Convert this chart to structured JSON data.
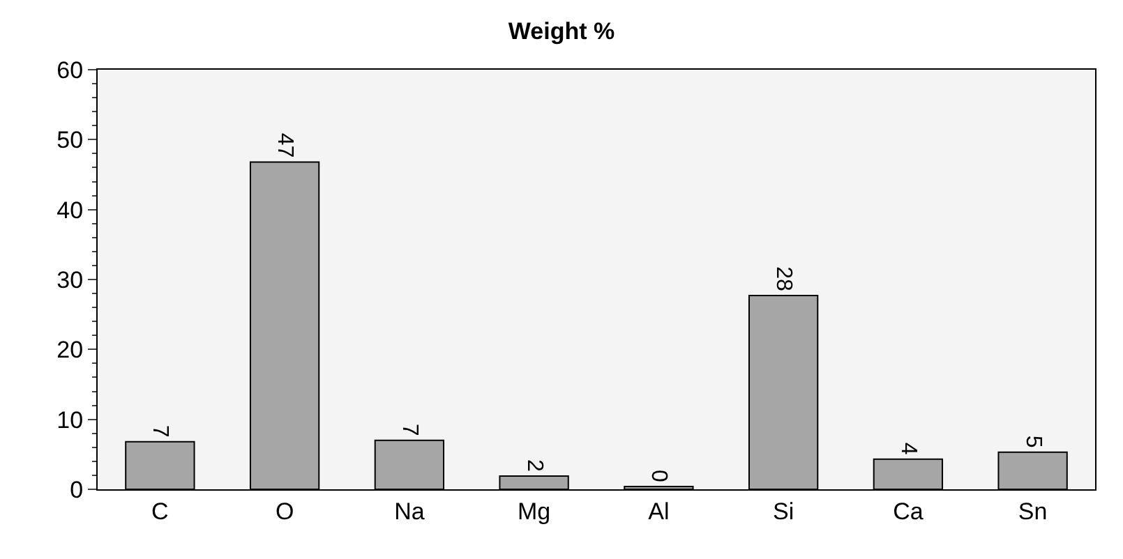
{
  "chart_data": {
    "type": "bar",
    "title": "Weight %",
    "categories": [
      "C",
      "O",
      "Na",
      "Mg",
      "Al",
      "Si",
      "Ca",
      "Sn"
    ],
    "values": [
      6.8,
      46.8,
      7,
      1.9,
      0.4,
      27.7,
      4.3,
      5.3
    ],
    "value_labels": [
      "7",
      "47",
      "7",
      "2",
      "0",
      "28",
      "4",
      "5"
    ],
    "color": "#a6a6a6",
    "ylim": [
      0,
      60
    ],
    "yticks": [
      0,
      10,
      20,
      30,
      40,
      50,
      60
    ],
    "grid": false,
    "legend": false
  }
}
